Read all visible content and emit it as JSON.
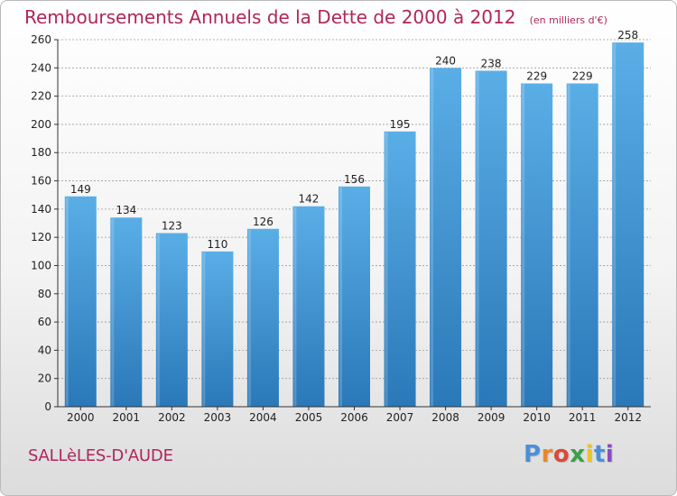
{
  "chart_data": {
    "type": "bar",
    "title": "Remboursements Annuels de la Dette de 2000 à 2012",
    "unit_note": "(en milliers d'€)",
    "categories": [
      "2000",
      "2001",
      "2002",
      "2003",
      "2004",
      "2005",
      "2006",
      "2007",
      "2008",
      "2009",
      "2010",
      "2011",
      "2012"
    ],
    "values": [
      149,
      134,
      123,
      110,
      126,
      142,
      156,
      195,
      240,
      238,
      229,
      229,
      258
    ],
    "ylim": [
      0,
      260
    ],
    "yticks": [
      0,
      20,
      40,
      60,
      80,
      100,
      120,
      140,
      160,
      180,
      200,
      220,
      240,
      260
    ],
    "grid": true,
    "bar_color_top": "#5aaee6",
    "bar_color_bottom": "#2a78b8",
    "grid_color": "#9a9a9a"
  },
  "commune": "SALLèLES-D'AUDE",
  "logo": {
    "letters": [
      "P",
      "r",
      "o",
      "x",
      "i",
      "t",
      "i"
    ],
    "colors": [
      "#4a90d9",
      "#e8882c",
      "#d94a3a",
      "#3aa04a",
      "#e8c52c",
      "#4a90d9",
      "#8a4ac0"
    ]
  }
}
